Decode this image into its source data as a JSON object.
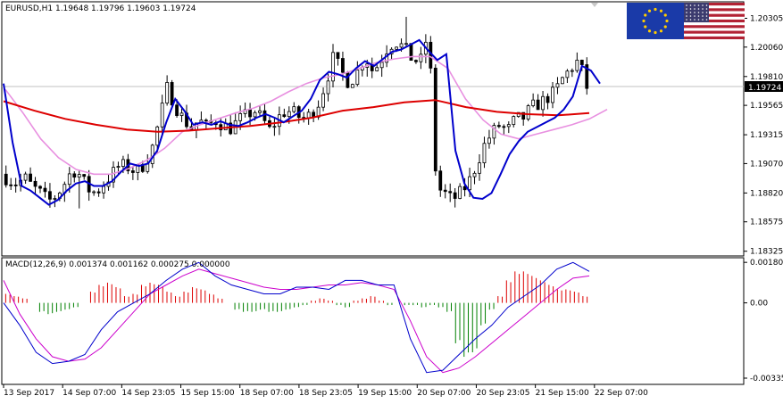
{
  "window": {
    "symbol_header": "EURUSD,H1  1.19648 1.19796 1.19603 1.19724",
    "current_price_tag": "1.19724",
    "macd_header": "MACD(12,26,9) 0.001374 0.001162 0.000275 0.000000"
  },
  "flags": [
    {
      "name": "eu-flag-icon",
      "colors": [
        "#1a3aa8",
        "#ffcc00"
      ]
    },
    {
      "name": "us-flag-icon",
      "colors": [
        "#b22234",
        "#ffffff",
        "#3c3b6e"
      ]
    }
  ],
  "colors": {
    "candles": "#000000",
    "ma_fast": "#0000cc",
    "ma_slow": "#dd0000",
    "ma_mid": "#e890e0",
    "macd_pos": "#dd0000",
    "macd_neg": "#008000",
    "macd_main": "#0000cc",
    "macd_signal": "#cc00cc"
  },
  "chart_data": [
    {
      "type": "candlestick",
      "title": "EURUSD,H1",
      "ylim": [
        1.183,
        1.2043
      ],
      "y_ticks": [
        "1.20305",
        "1.20060",
        "1.19810",
        "1.19565",
        "1.19315",
        "1.19070",
        "1.18820",
        "1.18575",
        "1.18325"
      ],
      "y_tick_values": [
        1.20305,
        1.2006,
        1.1981,
        1.19565,
        1.19315,
        1.1907,
        1.1882,
        1.18575,
        1.18325
      ],
      "x_ticks": [
        "13 Sep 2017",
        "14 Sep 07:00",
        "14 Sep 23:05",
        "15 Sep 15:00",
        "18 Sep 07:00",
        "18 Sep 23:05",
        "19 Sep 15:00",
        "20 Sep 07:00",
        "20 Sep 23:05",
        "21 Sep 15:00",
        "22 Sep 07:00"
      ],
      "current_price": 1.19724,
      "close_path": [
        1.1898,
        1.1893,
        1.189,
        1.1895,
        1.1887,
        1.1882,
        1.1875,
        1.188,
        1.189,
        1.1902,
        1.1897,
        1.1885,
        1.1882,
        1.189,
        1.1898,
        1.1906,
        1.1904,
        1.19,
        1.1906,
        1.1918,
        1.1944,
        1.1972,
        1.1956,
        1.1945,
        1.1937,
        1.1944,
        1.1938,
        1.1944,
        1.194,
        1.1937,
        1.1944,
        1.1948,
        1.1952,
        1.1945,
        1.1935,
        1.1946,
        1.1952,
        1.195,
        1.1945,
        1.1948,
        1.1957,
        1.1975,
        1.1998,
        1.1985,
        1.1975,
        1.1985,
        1.1998,
        1.1985,
        1.1995,
        1.2008,
        1.201,
        1.2005,
        1.1995,
        1.1994,
        1.202,
        1.1887,
        1.1882,
        1.1876,
        1.1882,
        1.189,
        1.1905,
        1.1922,
        1.1933,
        1.194,
        1.1935,
        1.1945,
        1.1946,
        1.1955,
        1.1958,
        1.1963,
        1.1968,
        1.198,
        1.1988,
        1.1995,
        1.1972
      ],
      "series": [
        {
          "name": "ma-fast",
          "values": [
            1.1975,
            1.1925,
            1.1888,
            1.1884,
            1.1878,
            1.1872,
            1.1876,
            1.1884,
            1.189,
            1.1892,
            1.1888,
            1.1888,
            1.1892,
            1.19,
            1.1907,
            1.1905,
            1.1907,
            1.1918,
            1.1942,
            1.1962,
            1.1952,
            1.194,
            1.1942,
            1.194,
            1.1943,
            1.194,
            1.1939,
            1.1942,
            1.1946,
            1.1949,
            1.1946,
            1.1942,
            1.1947,
            1.1952,
            1.1962,
            1.1978,
            1.1985,
            1.1983,
            1.198,
            1.1988,
            1.1994,
            1.199,
            1.1996,
            1.2002,
            1.2004,
            1.2008,
            1.2012,
            1.2003,
            1.1995,
            1.2,
            1.1918,
            1.189,
            1.1878,
            1.1877,
            1.1882,
            1.1898,
            1.1915,
            1.1926,
            1.1934,
            1.1938,
            1.1942,
            1.1946,
            1.1953,
            1.1964,
            1.199,
            1.1986,
            1.1975
          ]
        },
        {
          "name": "ma-mid",
          "values": [
            1.197,
            1.195,
            1.1928,
            1.1912,
            1.1902,
            1.1898,
            1.1898,
            1.1903,
            1.191,
            1.192,
            1.1934,
            1.194,
            1.1945,
            1.195,
            1.1954,
            1.196,
            1.1968,
            1.1975,
            1.198,
            1.1983,
            1.1988,
            1.1993,
            1.1996,
            1.1998,
            1.1998,
            1.1988,
            1.1962,
            1.1944,
            1.1932,
            1.1928,
            1.1932,
            1.1936,
            1.194,
            1.1945,
            1.1953
          ]
        },
        {
          "name": "ma-slow",
          "values": [
            1.196,
            1.1952,
            1.1945,
            1.194,
            1.1936,
            1.1934,
            1.1935,
            1.1937,
            1.1939,
            1.1942,
            1.1946,
            1.1952,
            1.1955,
            1.1959,
            1.1961,
            1.1955,
            1.1951,
            1.1949,
            1.1948,
            1.195
          ]
        }
      ]
    },
    {
      "type": "bar+line",
      "title": "MACD(12,26,9)",
      "ylim": [
        -0.00355,
        0.00193
      ],
      "y_ticks": [
        "0.001804",
        "0.00",
        "-0.003351"
      ],
      "y_tick_values": [
        0.001804,
        0.0,
        -0.003351
      ],
      "histogram": [
        0.0004,
        0.0003,
        0.0002,
        0.0,
        -0.0004,
        -0.0005,
        -0.0004,
        -0.0003,
        -0.0002,
        0.0,
        0.0005,
        0.0008,
        0.0009,
        0.0007,
        0.0003,
        0.0004,
        0.0008,
        0.0009,
        0.0008,
        0.0005,
        0.0003,
        0.0005,
        0.0007,
        0.0006,
        0.0004,
        0.0002,
        0.0,
        -0.0003,
        -0.0004,
        -0.0004,
        -0.0003,
        -0.0004,
        -0.0004,
        -0.0003,
        -0.0002,
        -0.0001,
        0.0001,
        0.0002,
        0.0001,
        -0.0001,
        -0.0002,
        0.0001,
        0.0002,
        0.0003,
        0.0001,
        -0.0001,
        0.0,
        -0.0001,
        -0.0001,
        -0.0002,
        -0.0001,
        -0.0002,
        -0.0004,
        -0.0018,
        -0.0024,
        -0.0022,
        -0.001,
        -0.0003,
        0.0003,
        0.001,
        0.0014,
        0.0014,
        0.0012,
        0.001,
        0.0008,
        0.0006,
        0.0006,
        0.0005,
        0.0003
      ],
      "series": [
        {
          "name": "macd-main",
          "values": [
            0.0,
            -0.001,
            -0.0022,
            -0.0027,
            -0.0026,
            -0.0023,
            -0.0012,
            -0.0004,
            0.0,
            0.0004,
            0.001,
            0.0015,
            0.0018,
            0.0012,
            0.0008,
            0.0006,
            0.0004,
            0.0004,
            0.0007,
            0.0007,
            0.0006,
            0.001,
            0.001,
            0.0008,
            0.0008,
            -0.0016,
            -0.0031,
            -0.003,
            -0.0023,
            -0.0016,
            -0.001,
            -0.0002,
            0.0003,
            0.0008,
            0.0015,
            0.0018,
            0.0014
          ]
        },
        {
          "name": "macd-signal",
          "values": [
            0.001,
            -0.0005,
            -0.0016,
            -0.0024,
            -0.0026,
            -0.0025,
            -0.002,
            -0.0012,
            -0.0004,
            0.0004,
            0.0008,
            0.0012,
            0.0015,
            0.0013,
            0.0011,
            0.0009,
            0.0007,
            0.0006,
            0.0006,
            0.0007,
            0.0008,
            0.0008,
            0.0009,
            0.0008,
            0.0006,
            -0.0008,
            -0.0024,
            -0.0031,
            -0.0029,
            -0.0024,
            -0.0018,
            -0.0012,
            -0.0006,
            0.0,
            0.0006,
            0.0011,
            0.0012
          ]
        }
      ]
    }
  ]
}
